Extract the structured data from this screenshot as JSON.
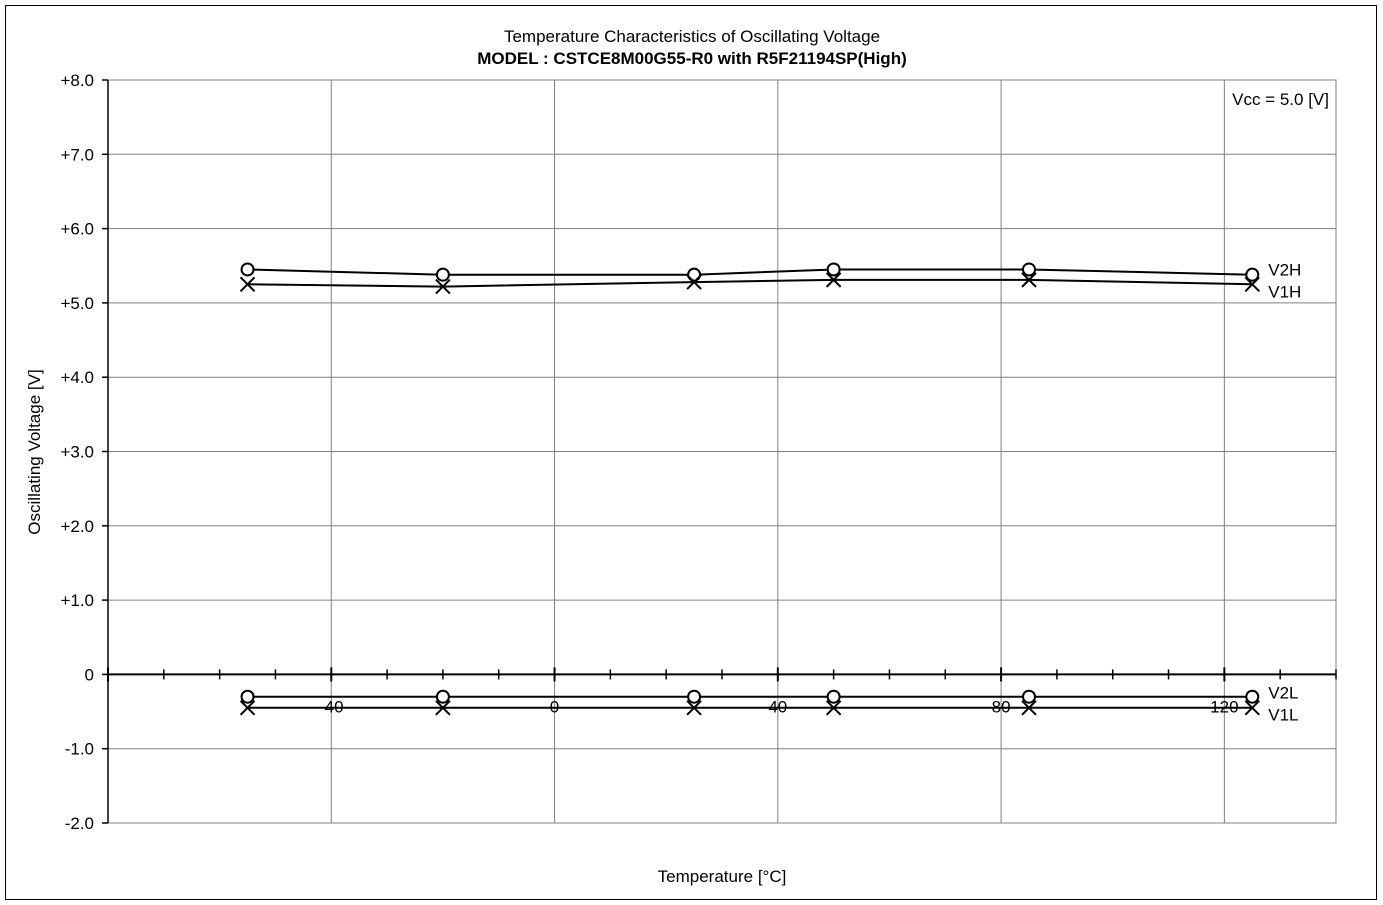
{
  "chart_data": {
    "type": "line",
    "title": "Temperature Characteristics of Oscillating Voltage",
    "subtitle": "MODEL : CSTCE8M00G55-R0 with R5F21194SP(High)",
    "annotation": "Vcc = 5.0 [V]",
    "xlabel": "Temperature [°C]",
    "ylabel": "Oscillating Voltage [V]",
    "xlim": [
      -80,
      140
    ],
    "ylim": [
      -2.0,
      8.0
    ],
    "x_ticks": [
      -40,
      0,
      40,
      80,
      120
    ],
    "x_tick_labels": [
      "-40",
      "0",
      "40",
      "80",
      "120"
    ],
    "y_ticks": [
      -2,
      -1,
      0,
      1,
      2,
      3,
      4,
      5,
      6,
      7,
      8
    ],
    "y_tick_labels": [
      "-2.0",
      "-1.0",
      "0",
      "+1.0",
      "+2.0",
      "+3.0",
      "+4.0",
      "+5.0",
      "+6.0",
      "+7.0",
      "+8.0"
    ],
    "grid": true,
    "x": [
      -55,
      -20,
      25,
      50,
      85,
      125
    ],
    "series": [
      {
        "name": "V2H",
        "marker": "circle",
        "values": [
          5.45,
          5.38,
          5.38,
          5.45,
          5.45,
          5.38
        ]
      },
      {
        "name": "V1H",
        "marker": "cross",
        "values": [
          5.25,
          5.22,
          5.28,
          5.31,
          5.31,
          5.25
        ]
      },
      {
        "name": "V2L",
        "marker": "circle",
        "values": [
          -0.3,
          -0.3,
          -0.3,
          -0.3,
          -0.3,
          -0.3
        ]
      },
      {
        "name": "V1L",
        "marker": "cross",
        "values": [
          -0.45,
          -0.45,
          -0.45,
          -0.45,
          -0.45,
          -0.45
        ]
      }
    ],
    "line_color": "#000000",
    "grid_color": "#808080"
  }
}
